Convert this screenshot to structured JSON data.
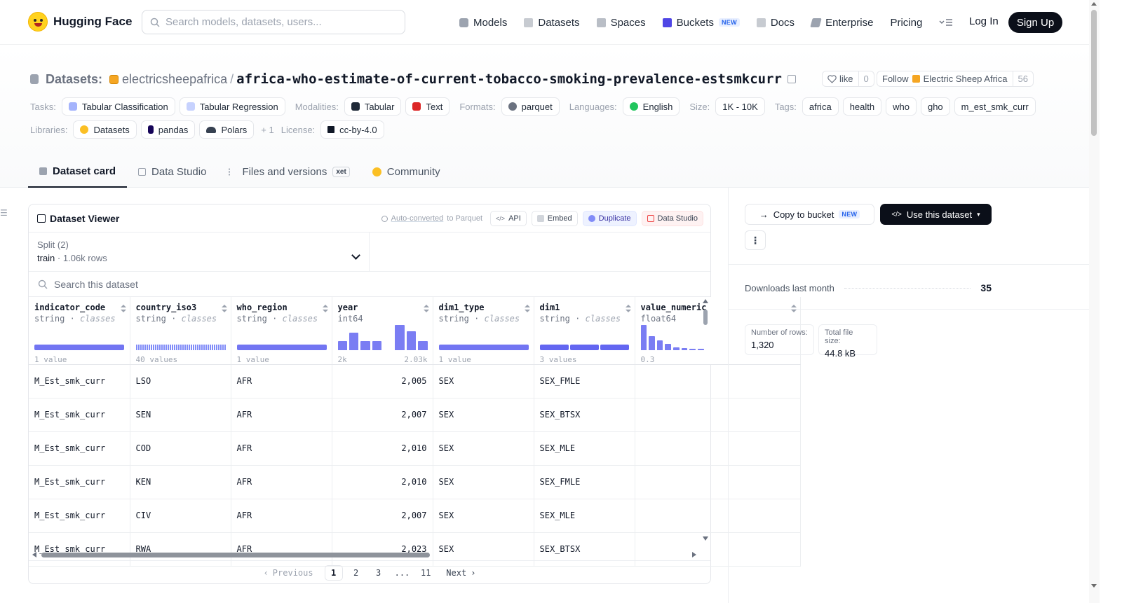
{
  "header": {
    "brand": "Hugging Face",
    "search_placeholder": "Search models, datasets, users...",
    "nav": [
      {
        "label": "Models",
        "icon": "cube-icon"
      },
      {
        "label": "Datasets",
        "icon": "database-icon"
      },
      {
        "label": "Spaces",
        "icon": "grid-icon"
      },
      {
        "label": "Buckets",
        "icon": "bucket-icon",
        "badge": "NEW"
      },
      {
        "label": "Docs",
        "icon": "book-icon"
      },
      {
        "label": "Enterprise",
        "icon": "enterprise-icon"
      },
      {
        "label": "Pricing"
      }
    ],
    "login": "Log In",
    "signup": "Sign Up"
  },
  "repo": {
    "type_label": "Datasets:",
    "org": "electricsheepafrica",
    "separator": "/",
    "name": "africa-who-estimate-of-current-tobacco-smoking-prevalence-estsmkcurr",
    "like_label": "like",
    "like_count": "0",
    "follow_label": "Follow",
    "follow_org": "Electric Sheep Africa",
    "follow_count": "56"
  },
  "meta": {
    "tasks_label": "Tasks:",
    "tasks": [
      "Tabular Classification",
      "Tabular Regression"
    ],
    "modalities_label": "Modalities:",
    "modalities": [
      "Tabular",
      "Text"
    ],
    "formats_label": "Formats:",
    "formats": [
      "parquet"
    ],
    "languages_label": "Languages:",
    "languages": [
      "English"
    ],
    "size_label": "Size:",
    "size": "1K - 10K",
    "tags_label": "Tags:",
    "tags": [
      "africa",
      "health",
      "who",
      "gho",
      "m_est_smk_curr"
    ],
    "libraries_label": "Libraries:",
    "libraries": [
      "Datasets",
      "pandas",
      "Polars"
    ],
    "libraries_more": "+ 1",
    "license_label": "License:",
    "license": "cc-by-4.0"
  },
  "tabs": [
    {
      "label": "Dataset card",
      "active": true
    },
    {
      "label": "Data Studio"
    },
    {
      "label": "Files and versions",
      "badge": "xet"
    },
    {
      "label": "Community"
    }
  ],
  "viewer": {
    "title": "Dataset Viewer",
    "auto_converted": "Auto-converted",
    "auto_converted_suffix": "to Parquet",
    "actions": [
      "API",
      "Embed",
      "Duplicate",
      "Data Studio"
    ],
    "split_label": "Split (2)",
    "split_value": "train",
    "split_rows": "1.06k rows",
    "search_placeholder": "Search this dataset",
    "columns": [
      {
        "name": "indicator_code",
        "type": "string",
        "kind": "classes",
        "stat_left": "1 value",
        "stat_right": ""
      },
      {
        "name": "country_iso3",
        "type": "string",
        "kind": "classes",
        "stat_left": "40 values",
        "stat_right": ""
      },
      {
        "name": "who_region",
        "type": "string",
        "kind": "classes",
        "stat_left": "1 value",
        "stat_right": ""
      },
      {
        "name": "year",
        "type": "int64",
        "kind": "",
        "stat_left": "2k",
        "stat_right": "2.03k"
      },
      {
        "name": "dim1_type",
        "type": "string",
        "kind": "classes",
        "stat_left": "1 value",
        "stat_right": ""
      },
      {
        "name": "dim1",
        "type": "string",
        "kind": "classes",
        "stat_left": "3 values",
        "stat_right": ""
      },
      {
        "name": "value_numeric",
        "type": "float64",
        "kind": "",
        "stat_left": "0.3",
        "stat_right": ""
      }
    ],
    "histograms": {
      "year": [
        0.35,
        0.7,
        0.35,
        0.35,
        0,
        1.0,
        0.75,
        0.35
      ],
      "value_numeric": [
        1.0,
        0.55,
        0.4,
        0.25,
        0.12,
        0.08,
        0.06,
        0.05
      ]
    },
    "rows": [
      [
        "M_Est_smk_curr",
        "LSO",
        "AFR",
        "2,005",
        "SEX",
        "SEX_FMLE",
        ""
      ],
      [
        "M_Est_smk_curr",
        "SEN",
        "AFR",
        "2,007",
        "SEX",
        "SEX_BTSX",
        ""
      ],
      [
        "M_Est_smk_curr",
        "COD",
        "AFR",
        "2,010",
        "SEX",
        "SEX_MLE",
        ""
      ],
      [
        "M_Est_smk_curr",
        "KEN",
        "AFR",
        "2,010",
        "SEX",
        "SEX_FMLE",
        ""
      ],
      [
        "M_Est_smk_curr",
        "CIV",
        "AFR",
        "2,007",
        "SEX",
        "SEX_MLE",
        ""
      ],
      [
        "M_Est_smk_curr",
        "RWA",
        "AFR",
        "2,023",
        "SEX",
        "SEX_BTSX",
        ""
      ]
    ],
    "pager": {
      "previous": "Previous",
      "pages": [
        "1",
        "2",
        "3",
        "...",
        "11"
      ],
      "current": "1",
      "next": "Next"
    }
  },
  "sidebar": {
    "copy_to_bucket": "Copy to bucket",
    "copy_badge": "NEW",
    "use_dataset": "Use this dataset",
    "more": "⋮",
    "downloads_label": "Downloads last month",
    "downloads_value": "35",
    "rows_label": "Number of rows:",
    "rows_value": "1,320",
    "size_label": "Total file size:",
    "size_value": "44.8 kB"
  }
}
